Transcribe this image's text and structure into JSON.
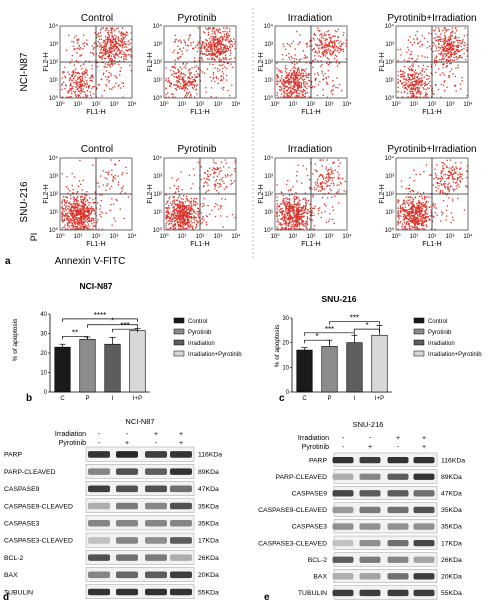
{
  "panel_a": {
    "label": "a",
    "row_labels": [
      "NCI-N87",
      "SNU-216"
    ],
    "titles": [
      "Control",
      "Pyrotinib",
      "Irradiation",
      "Pyrotinib+Irradiation"
    ],
    "xlabel": "FL1-H",
    "ylabel": "FL2-H",
    "x_ticks": [
      "10⁰",
      "10¹",
      "10²",
      "10³",
      "10⁴"
    ],
    "y_ticks": [
      "10⁰",
      "10¹",
      "10²",
      "10³",
      "10⁴"
    ],
    "outer_xlabel": "Annexin V-FITC",
    "outer_ylabel": "PI",
    "dot_color": "#d9332a"
  },
  "chart_data": [
    {
      "type": "bar",
      "panel": "b",
      "title": "NCI-N87",
      "ylabel": "% of apoptosis",
      "ylim": [
        0,
        40
      ],
      "yticks": [
        0,
        10,
        20,
        30,
        40
      ],
      "categories": [
        "C",
        "P",
        "I",
        "I+P"
      ],
      "values": [
        23,
        27,
        24.5,
        31.5
      ],
      "errors": [
        1.5,
        1.2,
        3.5,
        1.0
      ],
      "colors": [
        "#1a1a1a",
        "#8c8c8c",
        "#5e5e5e",
        "#d8d8d8"
      ],
      "legend": [
        "Control",
        "Pyrotinib",
        "Irradiation",
        "Irradiation+Pyrotinib"
      ],
      "significance": [
        "**",
        "****",
        "*",
        "***"
      ]
    },
    {
      "type": "bar",
      "panel": "c",
      "title": "SNU-216",
      "ylabel": "% of apoptosis",
      "ylim": [
        0,
        30
      ],
      "yticks": [
        0,
        10,
        20,
        30
      ],
      "categories": [
        "C",
        "P",
        "I",
        "I+P"
      ],
      "values": [
        17,
        18.5,
        20,
        23
      ],
      "errors": [
        1.0,
        2.5,
        3.0,
        4.0
      ],
      "colors": [
        "#1a1a1a",
        "#8c8c8c",
        "#5e5e5e",
        "#d8d8d8"
      ],
      "legend": [
        "Control",
        "Pyrotinib",
        "Irradiation",
        "Irradiation+Pyrotinib"
      ],
      "significance": [
        "*",
        "***",
        "***",
        "*"
      ]
    }
  ],
  "panel_d": {
    "label": "d",
    "title": "NCI-N87",
    "treat_rows": [
      "Irradiation",
      "Pyrotinib"
    ],
    "signs": [
      [
        "-",
        "-",
        "+",
        "+"
      ],
      [
        "-",
        "+",
        "-",
        "+"
      ]
    ],
    "proteins": [
      "PARP",
      "PARP-CLEAVED",
      "CASPASE9",
      "CASPASE9-CLEAVED",
      "CASPASE3",
      "CASPASE3-CLEAVED",
      "BCL-2",
      "BAX",
      "TUBULIN"
    ],
    "sizes": [
      "116KDa",
      "89KDa",
      "47KDa",
      "35KDa",
      "35KDa",
      "17KDa",
      "26KDa",
      "20KDa",
      "55KDa"
    ]
  },
  "panel_e": {
    "label": "e",
    "title": "SNU-216",
    "treat_rows": [
      "Irradiation",
      "Pyrotinib"
    ],
    "signs": [
      [
        "-",
        "-",
        "+",
        "+"
      ],
      [
        "-",
        "+",
        "-",
        "+"
      ]
    ],
    "proteins": [
      "PARP",
      "PARP-CLEAVED",
      "CASPASE9",
      "CASPASE9-CLEAVED",
      "CASPASE3",
      "CASPASE3-CLEAVED",
      "BCL-2",
      "BAX",
      "TUBULIN"
    ],
    "sizes": [
      "116KDa",
      "89KDa",
      "47KDa",
      "35KDa",
      "35KDa",
      "17KDa",
      "26KDa",
      "20KDa",
      "55KDa"
    ]
  }
}
